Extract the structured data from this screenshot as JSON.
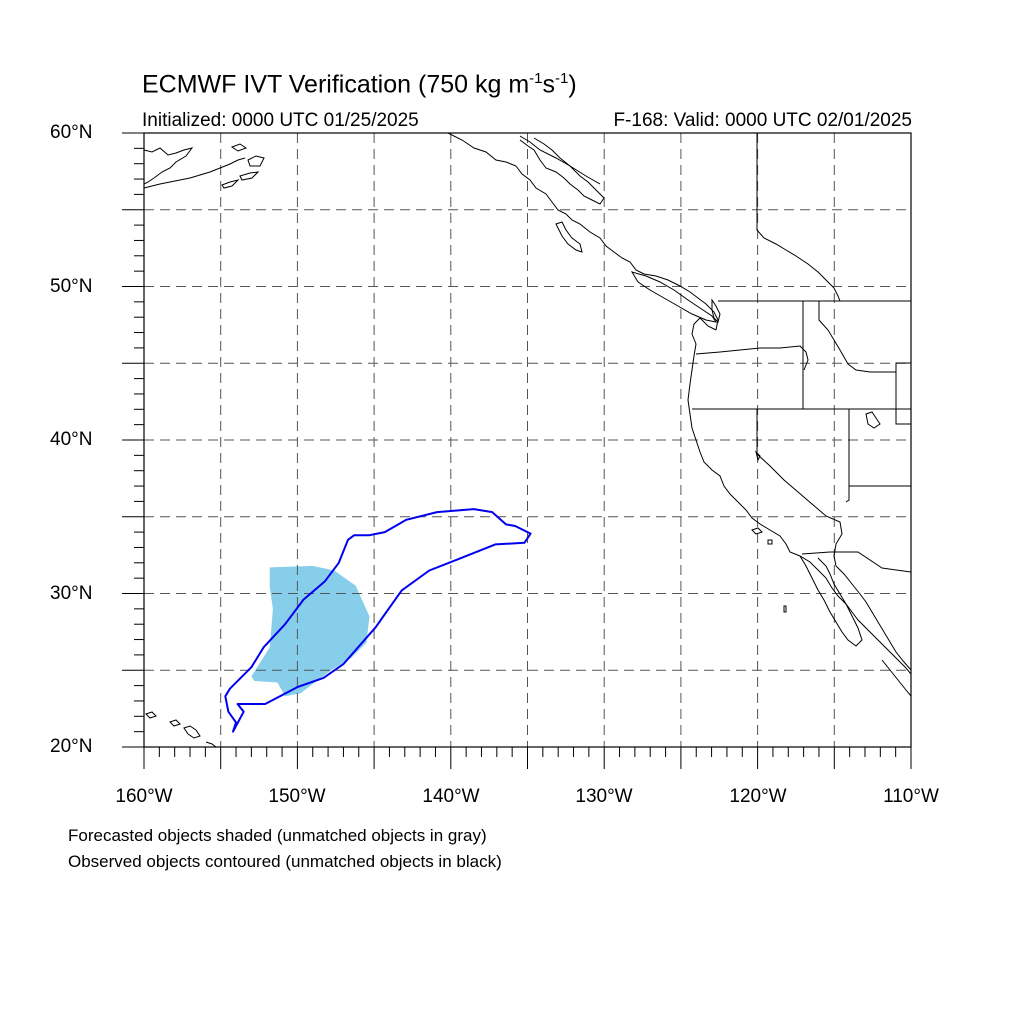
{
  "title": {
    "main": "ECMWF IVT Verification (750 kg m",
    "sup1": "-1",
    "mid": "s",
    "sup2": "-1",
    "end": ")"
  },
  "subtitle": {
    "initialized": "Initialized: 0000 UTC 01/25/2025",
    "valid": "F-168: Valid: 0000 UTC 02/01/2025"
  },
  "axes": {
    "lat_labels": [
      "60°N",
      "50°N",
      "40°N",
      "30°N",
      "20°N"
    ],
    "lon_labels": [
      "160°W",
      "150°W",
      "140°W",
      "130°W",
      "120°W",
      "110°W"
    ],
    "lat_range": [
      20,
      60
    ],
    "lon_range": [
      -160,
      -110
    ],
    "grid": "dashed, every 5 degrees"
  },
  "legend": {
    "line1": "Forecasted objects shaded (unmatched objects in gray)",
    "line2": "Observed objects contoured (unmatched objects in black)"
  },
  "colors": {
    "forecast_shade": "#87ceeb",
    "observed_contour": "#0000ee",
    "coastline": "#000000",
    "grid": "#555555"
  },
  "objects": {
    "forecast_shaded": {
      "matched": true,
      "outline_lonlat": [
        [
          -151.8,
          31.7
        ],
        [
          -149.0,
          31.8
        ],
        [
          -147.6,
          31.5
        ],
        [
          -146.2,
          30.5
        ],
        [
          -145.3,
          28.5
        ],
        [
          -145.5,
          26.8
        ],
        [
          -146.5,
          25.8
        ],
        [
          -147.8,
          25.0
        ],
        [
          -149.8,
          23.5
        ],
        [
          -150.8,
          23.3
        ],
        [
          -151.3,
          24.2
        ],
        [
          -152.8,
          24.3
        ],
        [
          -153.0,
          24.6
        ],
        [
          -151.8,
          26.5
        ],
        [
          -151.6,
          29.0
        ],
        [
          -151.8,
          30.4
        ]
      ]
    },
    "observed_contour": {
      "matched": true,
      "outline_lonlat": [
        [
          -154.2,
          21.0
        ],
        [
          -153.5,
          22.3
        ],
        [
          -153.9,
          22.8
        ],
        [
          -152.1,
          22.8
        ],
        [
          -150.0,
          23.9
        ],
        [
          -148.3,
          24.5
        ],
        [
          -147.0,
          25.4
        ],
        [
          -144.9,
          27.8
        ],
        [
          -143.2,
          30.2
        ],
        [
          -141.4,
          31.5
        ],
        [
          -139.6,
          32.2
        ],
        [
          -137.1,
          33.2
        ],
        [
          -135.2,
          33.3
        ],
        [
          -134.8,
          33.9
        ],
        [
          -135.8,
          34.4
        ],
        [
          -136.4,
          34.5
        ],
        [
          -137.3,
          35.3
        ],
        [
          -138.5,
          35.5
        ],
        [
          -140.9,
          35.3
        ],
        [
          -142.9,
          34.8
        ],
        [
          -144.3,
          34.0
        ],
        [
          -145.3,
          33.8
        ],
        [
          -146.3,
          33.8
        ],
        [
          -146.7,
          33.5
        ],
        [
          -147.3,
          32.0
        ],
        [
          -148.2,
          30.8
        ],
        [
          -149.6,
          29.6
        ],
        [
          -150.8,
          28.0
        ],
        [
          -152.2,
          26.5
        ],
        [
          -153.0,
          25.2
        ],
        [
          -154.4,
          23.8
        ],
        [
          -154.7,
          23.3
        ],
        [
          -154.5,
          22.3
        ],
        [
          -154.0,
          21.6
        ]
      ]
    }
  }
}
